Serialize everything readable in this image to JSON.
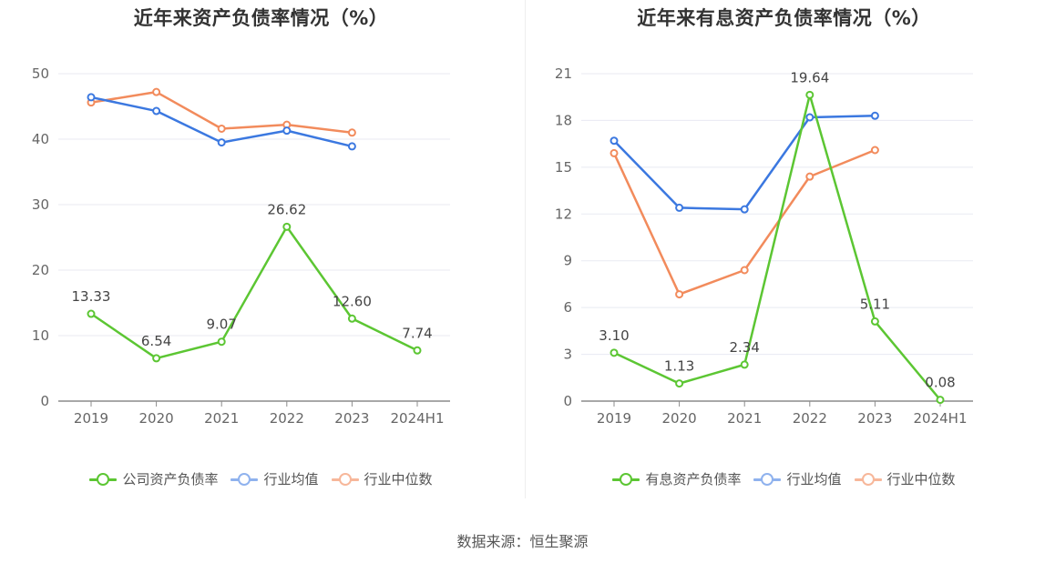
{
  "chart_data": [
    {
      "type": "line",
      "title": "近年来资产负债率情况（%）",
      "categories": [
        "2019",
        "2020",
        "2021",
        "2022",
        "2023",
        "2024H1"
      ],
      "ylim": [
        0,
        50
      ],
      "yticks": [
        0,
        10,
        20,
        30,
        40,
        50
      ],
      "grid": true,
      "legend_position": "bottom",
      "series": [
        {
          "name": "公司资产负债率",
          "color": "#5cc633",
          "labels": true,
          "values": [
            13.33,
            6.54,
            9.07,
            26.62,
            12.6,
            7.74
          ],
          "value_labels": [
            "13.33",
            "6.54",
            "9.07",
            "26.62",
            "12.60",
            "7.74"
          ]
        },
        {
          "name": "行业均值",
          "color": "#3b78e0",
          "labels": false,
          "values": [
            46.4,
            44.3,
            39.5,
            41.3,
            38.9,
            null
          ]
        },
        {
          "name": "行业中位数",
          "color": "#f28b5c",
          "labels": false,
          "values": [
            45.6,
            47.2,
            41.6,
            42.2,
            41.0,
            null
          ]
        }
      ]
    },
    {
      "type": "line",
      "title": "近年来有息资产负债率情况（%）",
      "categories": [
        "2019",
        "2020",
        "2021",
        "2022",
        "2023",
        "2024H1"
      ],
      "ylim": [
        0,
        21
      ],
      "yticks": [
        0,
        3,
        6,
        9,
        12,
        15,
        18,
        21
      ],
      "grid": true,
      "legend_position": "bottom",
      "series": [
        {
          "name": "有息资产负债率",
          "color": "#5cc633",
          "labels": true,
          "values": [
            3.1,
            1.13,
            2.34,
            19.64,
            5.11,
            0.08
          ],
          "value_labels": [
            "3.10",
            "1.13",
            "2.34",
            "19.64",
            "5.11",
            "0.08"
          ]
        },
        {
          "name": "行业均值",
          "color": "#3b78e0",
          "labels": false,
          "values": [
            16.7,
            12.4,
            12.3,
            18.2,
            18.3,
            null
          ]
        },
        {
          "name": "行业中位数",
          "color": "#f28b5c",
          "labels": false,
          "values": [
            15.9,
            6.85,
            8.4,
            14.4,
            16.1,
            null
          ]
        }
      ]
    }
  ],
  "footer": {
    "source": "数据来源：恒生聚源"
  }
}
